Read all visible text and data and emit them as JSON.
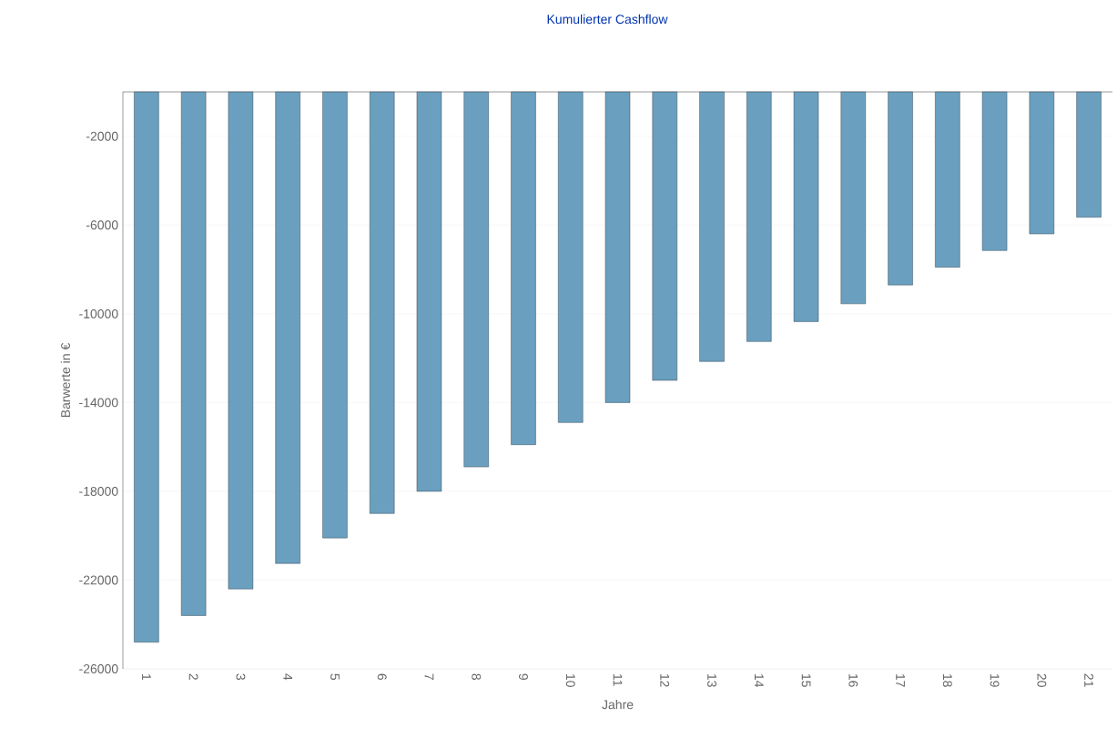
{
  "chart_data": {
    "type": "bar",
    "title": "Kumulierter Cashflow",
    "xlabel": "Jahre",
    "ylabel": "Barwerte in €",
    "categories": [
      "1",
      "2",
      "3",
      "4",
      "5",
      "6",
      "7",
      "8",
      "9",
      "10",
      "11",
      "12",
      "13",
      "14",
      "15",
      "16",
      "17",
      "18",
      "19",
      "20",
      "21"
    ],
    "values": [
      -24800,
      -23600,
      -22400,
      -21250,
      -20100,
      -19000,
      -18000,
      -16900,
      -15900,
      -14900,
      -14000,
      -13000,
      -12150,
      -11250,
      -10350,
      -9550,
      -8700,
      -7900,
      -7150,
      -6400,
      -5650
    ],
    "color": "#6a9fbf",
    "ylim": [
      -26000,
      0
    ],
    "yticks": [
      -2000,
      -6000,
      -10000,
      -14000,
      -18000,
      -22000,
      -26000
    ],
    "grid": "y"
  }
}
